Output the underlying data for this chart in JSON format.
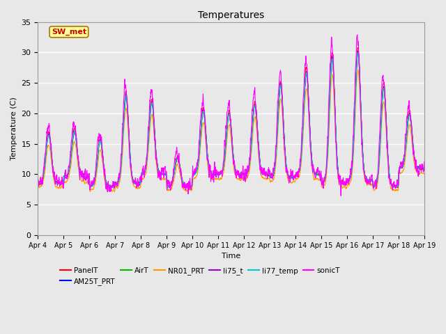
{
  "title": "Temperatures",
  "xlabel": "Time",
  "ylabel": "Temperature (C)",
  "ylim": [
    0,
    35
  ],
  "n_days": 15,
  "xtick_labels": [
    "Apr 4",
    "Apr 5",
    "Apr 6",
    "Apr 7",
    "Apr 8",
    "Apr 9",
    "Apr 10",
    "Apr 11",
    "Apr 12",
    "Apr 13",
    "Apr 14",
    "Apr 15",
    "Apr 16",
    "Apr 17",
    "Apr 18",
    "Apr 19"
  ],
  "ytick_values": [
    0,
    5,
    10,
    15,
    20,
    25,
    30,
    35
  ],
  "annotation_text": "SW_met",
  "annotation_bg": "#FFFF99",
  "annotation_border": "#AA7700",
  "annotation_text_color": "#CC0000",
  "series": [
    {
      "name": "PanelT",
      "color": "#FF0000"
    },
    {
      "name": "AM25T_PRT",
      "color": "#0000FF"
    },
    {
      "name": "AirT",
      "color": "#00BB00"
    },
    {
      "name": "NR01_PRT",
      "color": "#FF9900"
    },
    {
      "name": "li75_t",
      "color": "#9900CC"
    },
    {
      "name": "li77_temp",
      "color": "#00CCCC"
    },
    {
      "name": "sonicT",
      "color": "#FF00FF"
    }
  ],
  "bg_color": "#E8E8E8",
  "grid_color": "#FFFFFF",
  "linewidth": 0.8,
  "figsize": [
    6.4,
    4.8
  ],
  "dpi": 100
}
